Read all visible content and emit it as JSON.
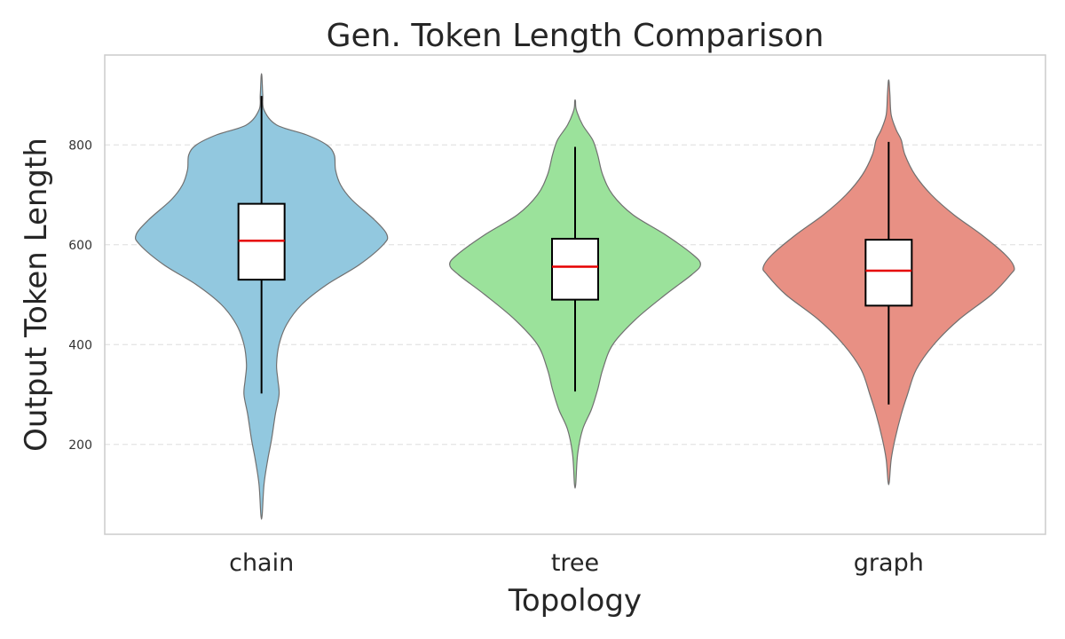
{
  "chart_data": {
    "type": "violin",
    "title": "Gen. Token Length Comparison",
    "xlabel": "Topology",
    "ylabel": "Output Token Length",
    "ylim": [
      20,
      980
    ],
    "yticks": [
      200,
      400,
      600,
      800
    ],
    "grid": "y-dashed",
    "categories": [
      "chain",
      "tree",
      "graph"
    ],
    "colors": [
      "#92c8df",
      "#9be29b",
      "#e89084"
    ],
    "median_color": "#e60000",
    "violins": [
      {
        "name": "chain",
        "min": 58,
        "max": 938,
        "whisker_low": 302,
        "whisker_high": 898,
        "q1": 530,
        "median": 608,
        "q3": 682,
        "density": [
          [
            58,
            0.005
          ],
          [
            120,
            0.02
          ],
          [
            170,
            0.05
          ],
          [
            210,
            0.08
          ],
          [
            260,
            0.11
          ],
          [
            300,
            0.14
          ],
          [
            330,
            0.13
          ],
          [
            360,
            0.12
          ],
          [
            400,
            0.14
          ],
          [
            440,
            0.2
          ],
          [
            480,
            0.32
          ],
          [
            520,
            0.52
          ],
          [
            560,
            0.78
          ],
          [
            600,
            0.97
          ],
          [
            620,
            1.0
          ],
          [
            650,
            0.9
          ],
          [
            690,
            0.72
          ],
          [
            720,
            0.63
          ],
          [
            750,
            0.59
          ],
          [
            780,
            0.58
          ],
          [
            800,
            0.52
          ],
          [
            820,
            0.36
          ],
          [
            840,
            0.12
          ],
          [
            870,
            0.02
          ],
          [
            900,
            0.01
          ],
          [
            938,
            0.003
          ]
        ]
      },
      {
        "name": "tree",
        "min": 120,
        "max": 888,
        "whisker_low": 306,
        "whisker_high": 796,
        "q1": 490,
        "median": 556,
        "q3": 612,
        "density": [
          [
            120,
            0.005
          ],
          [
            180,
            0.02
          ],
          [
            230,
            0.06
          ],
          [
            270,
            0.13
          ],
          [
            310,
            0.18
          ],
          [
            350,
            0.22
          ],
          [
            400,
            0.3
          ],
          [
            450,
            0.48
          ],
          [
            500,
            0.72
          ],
          [
            540,
            0.93
          ],
          [
            560,
            1.0
          ],
          [
            580,
            0.94
          ],
          [
            620,
            0.72
          ],
          [
            660,
            0.46
          ],
          [
            700,
            0.3
          ],
          [
            740,
            0.22
          ],
          [
            780,
            0.18
          ],
          [
            810,
            0.14
          ],
          [
            840,
            0.06
          ],
          [
            870,
            0.01
          ],
          [
            888,
            0.003
          ]
        ]
      },
      {
        "name": "graph",
        "min": 125,
        "max": 927,
        "whisker_low": 280,
        "whisker_high": 806,
        "q1": 478,
        "median": 548,
        "q3": 610,
        "density": [
          [
            125,
            0.005
          ],
          [
            170,
            0.02
          ],
          [
            210,
            0.05
          ],
          [
            260,
            0.1
          ],
          [
            300,
            0.15
          ],
          [
            350,
            0.22
          ],
          [
            400,
            0.36
          ],
          [
            450,
            0.56
          ],
          [
            500,
            0.82
          ],
          [
            540,
            0.97
          ],
          [
            555,
            1.0
          ],
          [
            580,
            0.93
          ],
          [
            620,
            0.74
          ],
          [
            660,
            0.52
          ],
          [
            700,
            0.34
          ],
          [
            740,
            0.21
          ],
          [
            780,
            0.13
          ],
          [
            810,
            0.1
          ],
          [
            830,
            0.06
          ],
          [
            860,
            0.02
          ],
          [
            900,
            0.01
          ],
          [
            927,
            0.003
          ]
        ]
      }
    ]
  }
}
